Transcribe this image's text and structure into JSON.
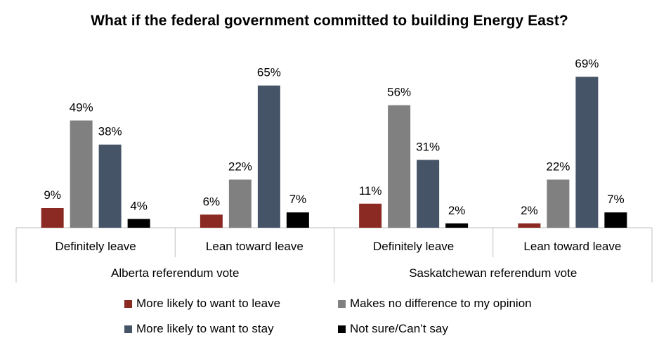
{
  "chart_data": {
    "type": "bar",
    "title": "What if the federal government committed to building Energy East?",
    "groups": [
      {
        "label": "Alberta referendum vote",
        "categories": [
          "Definitely leave",
          "Lean toward leave"
        ]
      },
      {
        "label": "Saskatchewan referendum vote",
        "categories": [
          "Definitely leave",
          "Lean toward leave"
        ]
      }
    ],
    "categories": [
      "Definitely leave",
      "Lean toward leave",
      "Definitely leave",
      "Lean toward leave"
    ],
    "series": [
      {
        "name": "More likely to want to leave",
        "color": "#8B2A23",
        "values": [
          9,
          6,
          11,
          2
        ]
      },
      {
        "name": "Makes no difference to my opinion",
        "color": "#808080",
        "values": [
          49,
          22,
          56,
          22
        ]
      },
      {
        "name": "More likely to want to stay",
        "color": "#465468",
        "values": [
          38,
          65,
          31,
          69
        ]
      },
      {
        "name": "Not sure/Can’t say",
        "color": "#000000",
        "values": [
          4,
          7,
          2,
          7
        ]
      }
    ],
    "value_suffix": "%",
    "ylim": [
      0,
      75
    ],
    "grid": false,
    "legend_position": "bottom"
  }
}
